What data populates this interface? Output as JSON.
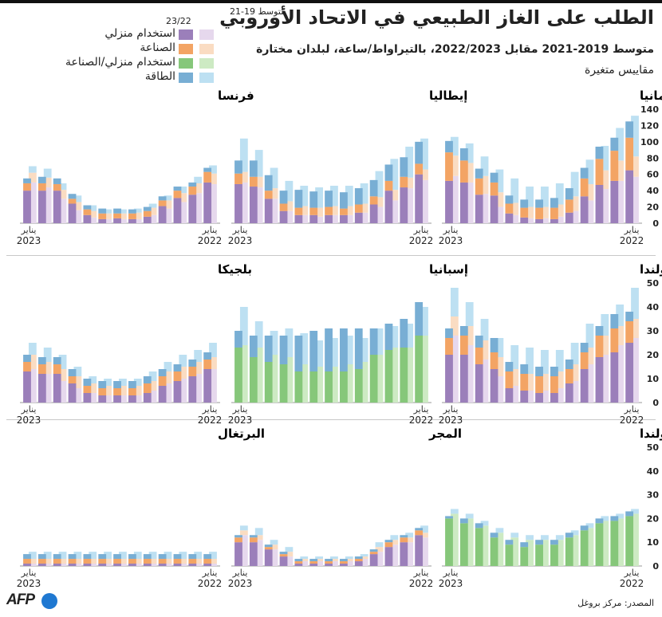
{
  "header": {
    "title": "الطلب على الغاز الطبيعي في الاتحاد الأوروبي",
    "subtitle": "متوسط 2019-2021 مقابل 2022/2023، بالتيراواط/ساعة، لبلدان مختارة",
    "note": "مقاييس متغيرة"
  },
  "legend": {
    "head_avg": "متوسط 19-21",
    "head_cur": "23/22",
    "items": [
      {
        "label": "استخدام منزلي",
        "avg_color": "#e6d8ed",
        "cur_color": "#9b7fba"
      },
      {
        "label": "الصناعة",
        "avg_color": "#fadcc2",
        "cur_color": "#f3a464"
      },
      {
        "label": "استخدام منزلي/الصناعة",
        "avg_color": "#cdeac3",
        "cur_color": "#86c77a"
      },
      {
        "label": "الطاقة",
        "avg_color": "#bde0f2",
        "cur_color": "#78aed4"
      }
    ]
  },
  "source": "المصدر: مركز بروغل",
  "logo_text": "AFP",
  "chart_data": [
    {
      "type": "bar",
      "title": "ألمانيا",
      "ylim": [
        0,
        140
      ],
      "yticks": [
        0,
        20,
        40,
        60,
        80,
        100,
        120,
        140
      ],
      "x_start_label": [
        "يناير",
        "2022"
      ],
      "x_end_label": [
        "يناير",
        "2023"
      ],
      "series_avg": {
        "home": [
          57,
          52,
          42,
          28,
          15,
          8,
          6,
          6,
          10,
          20,
          36,
          50,
          58
        ],
        "industry": [
          25,
          25,
          23,
          20,
          18,
          15,
          14,
          14,
          15,
          18,
          22,
          24,
          25
        ],
        "power": [
          50,
          40,
          30,
          30,
          30,
          26,
          25,
          25,
          30,
          28,
          24,
          24,
          23
        ]
      },
      "series_cur": {
        "home": [
          65,
          52,
          47,
          33,
          13,
          5,
          5,
          7,
          12,
          34,
          35,
          50,
          52
        ],
        "industry": [
          40,
          37,
          32,
          22,
          16,
          14,
          14,
          12,
          12,
          16,
          20,
          27,
          35
        ],
        "power": [
          20,
          16,
          15,
          13,
          14,
          12,
          10,
          10,
          10,
          12,
          12,
          15,
          14
        ]
      }
    },
    {
      "type": "bar",
      "title": "إيطاليا",
      "ylim": [
        0,
        140
      ],
      "x_start_label": [
        "يناير",
        "2022"
      ],
      "x_end_label": [
        "يناير",
        "2023"
      ],
      "series_avg": {
        "home": [
          53,
          43,
          28,
          20,
          13,
          10,
          10,
          8,
          10,
          15,
          30,
          44,
          50
        ],
        "industry": [
          13,
          13,
          13,
          12,
          11,
          11,
          11,
          11,
          11,
          12,
          13,
          13,
          13
        ],
        "power": [
          38,
          38,
          38,
          32,
          25,
          25,
          25,
          25,
          25,
          25,
          25,
          33,
          41
        ]
      },
      "series_cur": {
        "home": [
          60,
          44,
          40,
          23,
          13,
          10,
          10,
          10,
          10,
          15,
          30,
          45,
          48
        ],
        "industry": [
          13,
          13,
          12,
          10,
          10,
          8,
          10,
          9,
          9,
          9,
          10,
          12,
          13
        ],
        "power": [
          27,
          24,
          20,
          20,
          20,
          20,
          20,
          20,
          22,
          16,
          19,
          20,
          16
        ]
      }
    },
    {
      "type": "bar",
      "title": "فرنسا",
      "ylim": [
        0,
        140
      ],
      "x_start_label": [
        "يناير",
        "2022"
      ],
      "x_end_label": [
        "يناير",
        "2023"
      ],
      "series_avg": {
        "home": [
          48,
          37,
          26,
          18,
          10,
          5,
          5,
          5,
          7,
          16,
          30,
          44,
          50
        ],
        "industry": [
          13,
          12,
          11,
          10,
          9,
          8,
          7,
          7,
          8,
          10,
          11,
          12,
          12
        ],
        "power": [
          10,
          8,
          8,
          6,
          5,
          5,
          5,
          5,
          7,
          8,
          8,
          11,
          8
        ]
      },
      "series_cur": {
        "home": [
          50,
          35,
          31,
          21,
          8,
          5,
          6,
          5,
          10,
          24,
          40,
          40,
          40
        ],
        "industry": [
          13,
          10,
          9,
          7,
          7,
          7,
          6,
          7,
          7,
          6,
          8,
          9,
          9
        ],
        "power": [
          5,
          5,
          5,
          5,
          5,
          5,
          6,
          6,
          5,
          6,
          7,
          8,
          6
        ]
      }
    },
    {
      "type": "bar",
      "title": "هولندا",
      "ylim": [
        0,
        50
      ],
      "yticks": [
        0,
        10,
        20,
        30,
        40,
        50
      ],
      "x_start_label": [
        "يناير",
        "2022"
      ],
      "x_end_label": [
        "يناير",
        "2023"
      ],
      "series_avg": {
        "home": [
          27,
          24,
          20,
          16,
          9,
          6,
          5,
          5,
          7,
          11,
          18,
          24,
          28
        ],
        "industry": [
          8,
          8,
          8,
          7,
          7,
          7,
          7,
          7,
          7,
          8,
          8,
          8,
          8
        ],
        "power": [
          13,
          9,
          9,
          10,
          9,
          9,
          10,
          11,
          10,
          8,
          9,
          10,
          12
        ]
      },
      "series_cur": {
        "home": [
          25,
          21,
          19,
          14,
          8,
          4,
          4,
          5,
          6,
          14,
          16,
          20,
          20
        ],
        "industry": [
          9,
          10,
          9,
          7,
          6,
          7,
          7,
          7,
          7,
          7,
          7,
          8,
          7
        ],
        "power": [
          4,
          6,
          4,
          4,
          4,
          4,
          4,
          4,
          4,
          6,
          5,
          4,
          4
        ]
      }
    },
    {
      "type": "bar",
      "title": "إسبانيا",
      "ylim": [
        0,
        50
      ],
      "x_start_label": [
        "يناير",
        "2022"
      ],
      "x_end_label": [
        "يناير",
        "2023"
      ],
      "series_avg": {
        "homeind": [
          28,
          23,
          23,
          20,
          17,
          16,
          15,
          15,
          16,
          19,
          20,
          23,
          24
        ],
        "power": [
          12,
          10,
          9,
          11,
          10,
          12,
          12,
          11,
          13,
          12,
          10,
          11,
          16
        ]
      },
      "series_cur": {
        "homeind": [
          28,
          23,
          22,
          20,
          14,
          13,
          13,
          13,
          13,
          16,
          17,
          19,
          23
        ],
        "power": [
          14,
          12,
          11,
          11,
          17,
          18,
          18,
          17,
          15,
          12,
          11,
          9,
          7
        ]
      }
    },
    {
      "type": "bar",
      "title": "بلجيكا",
      "ylim": [
        0,
        50
      ],
      "x_start_label": [
        "يناير",
        "2022"
      ],
      "x_end_label": [
        "يناير",
        "2023"
      ],
      "series_avg": {
        "home": [
          14,
          12,
          10,
          8,
          5,
          3,
          3,
          3,
          4,
          6,
          9,
          12,
          14
        ],
        "industry": [
          5,
          5,
          5,
          5,
          4,
          4,
          4,
          4,
          4,
          5,
          5,
          5,
          6
        ],
        "power": [
          6,
          5,
          5,
          4,
          4,
          3,
          3,
          3,
          3,
          4,
          6,
          6,
          5
        ]
      },
      "series_cur": {
        "home": [
          14,
          11,
          9,
          7,
          4,
          3,
          3,
          3,
          4,
          8,
          12,
          12,
          13
        ],
        "industry": [
          4,
          4,
          4,
          4,
          4,
          3,
          3,
          3,
          3,
          3,
          4,
          4,
          4
        ],
        "power": [
          3,
          3,
          3,
          3,
          3,
          3,
          3,
          3,
          3,
          3,
          3,
          3,
          3
        ]
      }
    },
    {
      "type": "bar",
      "title": "بولندا",
      "ylim": [
        0,
        50
      ],
      "yticks": [
        0,
        10,
        20,
        30,
        40,
        50
      ],
      "x_start_label": [
        "يناير",
        "2022"
      ],
      "x_end_label": [
        "يناير",
        "2023"
      ],
      "series_avg": {
        "homeind": [
          22,
          20,
          19,
          16,
          13,
          11,
          11,
          11,
          12,
          14,
          17,
          20,
          22
        ],
        "power": [
          2,
          2,
          2,
          2,
          2,
          2,
          2,
          2,
          2,
          2,
          2,
          2,
          2
        ]
      },
      "series_cur": {
        "homeind": [
          21,
          19,
          18,
          15,
          12,
          9,
          9,
          8,
          9,
          12,
          16,
          18,
          20
        ],
        "power": [
          2,
          2,
          2,
          2,
          2,
          2,
          2,
          2,
          2,
          2,
          2,
          2,
          1
        ]
      }
    },
    {
      "type": "bar",
      "title": "المجر",
      "ylim": [
        0,
        50
      ],
      "x_start_label": [
        "يناير",
        "2022"
      ],
      "x_end_label": [
        "يناير",
        "2023"
      ],
      "series_avg": {
        "home": [
          12,
          10,
          9,
          6,
          3,
          2,
          2,
          2,
          2,
          4,
          7,
          11,
          13
        ],
        "industry": [
          2,
          2,
          2,
          2,
          1,
          1,
          1,
          1,
          1,
          2,
          2,
          2,
          2
        ],
        "power": [
          3,
          2,
          2,
          2,
          1,
          1,
          1,
          1,
          1,
          2,
          2,
          3,
          2
        ]
      },
      "series_cur": {
        "home": [
          13,
          10,
          8,
          5,
          2,
          1,
          1,
          1,
          1,
          4,
          7,
          10,
          10
        ],
        "industry": [
          2,
          2,
          2,
          1,
          1,
          1,
          1,
          1,
          1,
          1,
          1,
          2,
          2
        ],
        "power": [
          1,
          1,
          1,
          1,
          1,
          1,
          1,
          1,
          1,
          1,
          1,
          1,
          1
        ]
      }
    },
    {
      "type": "bar",
      "title": "البرتغال",
      "ylim": [
        0,
        50
      ],
      "x_start_label": [
        "يناير",
        "2022"
      ],
      "x_end_label": [
        "يناير",
        "2023"
      ],
      "series_avg": {
        "home": [
          1,
          1,
          1,
          1,
          1,
          1,
          1,
          1,
          1,
          1,
          1,
          1,
          1
        ],
        "industry": [
          2,
          2,
          2,
          2,
          2,
          2,
          2,
          2,
          2,
          2,
          2,
          2,
          2
        ],
        "power": [
          3,
          3,
          3,
          3,
          3,
          3,
          3,
          3,
          3,
          3,
          3,
          3,
          3
        ]
      },
      "series_cur": {
        "home": [
          1,
          1,
          1,
          1,
          1,
          1,
          1,
          1,
          1,
          1,
          1,
          1,
          1
        ],
        "industry": [
          2,
          2,
          2,
          2,
          2,
          2,
          2,
          2,
          2,
          2,
          2,
          2,
          2
        ],
        "power": [
          2,
          2,
          2,
          2,
          2,
          2,
          2,
          2,
          2,
          2,
          2,
          2,
          2
        ]
      }
    }
  ]
}
